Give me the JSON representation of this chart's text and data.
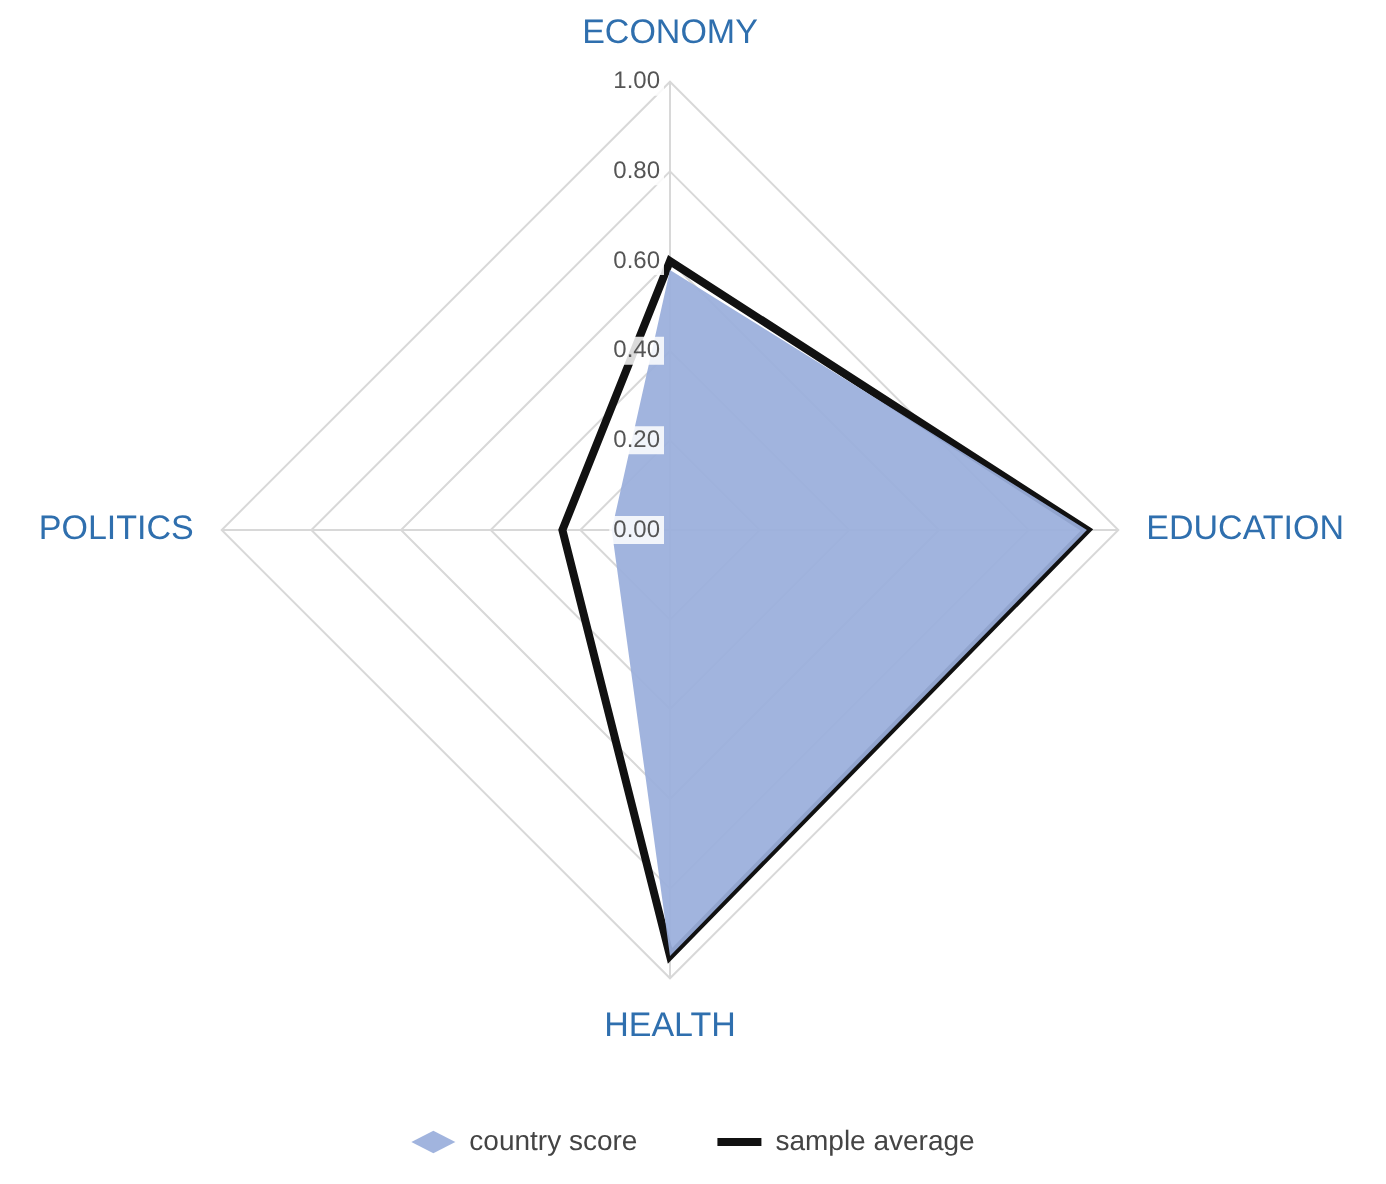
{
  "chart_data": {
    "type": "radar",
    "categories": [
      "ECONOMY",
      "EDUCATION",
      "HEALTH",
      "POLITICS"
    ],
    "series": [
      {
        "name": "country score",
        "color": "#9aafdc",
        "values": [
          0.58,
          0.93,
          0.95,
          0.13
        ]
      },
      {
        "name": "sample average",
        "color": "#111111",
        "values": [
          0.6,
          0.93,
          0.95,
          0.24
        ]
      }
    ],
    "ylim": [
      0,
      1
    ],
    "yticks": [
      {
        "value": 0,
        "label": "0.00"
      },
      {
        "value": 0.2,
        "label": "0.20"
      },
      {
        "value": 0.4,
        "label": "0.40"
      },
      {
        "value": 0.6,
        "label": "0.60"
      },
      {
        "value": 0.8,
        "label": "0.80"
      },
      {
        "value": 1,
        "label": "1.00"
      }
    ],
    "grid": true,
    "legend": "bottom",
    "marker": "none"
  }
}
